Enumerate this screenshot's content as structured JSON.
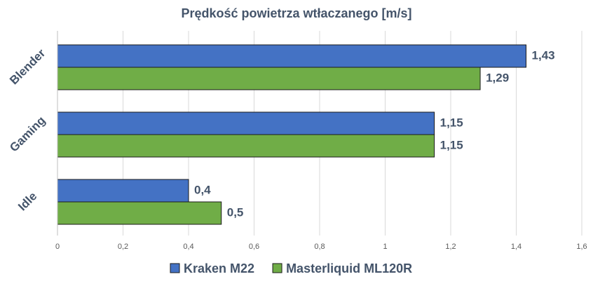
{
  "chart_data": {
    "type": "bar",
    "orientation": "horizontal",
    "title": "Prędkość powietrza wtłaczanego [m/s]",
    "categories": [
      "Blender",
      "Gaming",
      "Idle"
    ],
    "series": [
      {
        "name": "Kraken M22",
        "color": "#4472c4",
        "values": [
          1.43,
          1.15,
          0.4
        ],
        "value_labels": [
          "1,43",
          "1,15",
          "0,4"
        ]
      },
      {
        "name": "Masterliquid ML120R",
        "color": "#70ad47",
        "values": [
          1.29,
          1.15,
          0.5
        ],
        "value_labels": [
          "1,29",
          "1,15",
          "0,5"
        ]
      }
    ],
    "xlim": [
      0,
      1.6
    ],
    "xticks": [
      0,
      {
        "value": 0.2,
        "label": "0,2"
      },
      {
        "value": 0.4,
        "label": "0,4"
      },
      {
        "value": 0.6,
        "label": "0,6"
      },
      {
        "value": 0.8,
        "label": "0,8"
      },
      1,
      {
        "value": 1.2,
        "label": "1,2"
      },
      {
        "value": 1.4,
        "label": "1,4"
      },
      {
        "value": 1.6,
        "label": "1,6"
      }
    ],
    "grid": true,
    "legend": "bottom"
  }
}
